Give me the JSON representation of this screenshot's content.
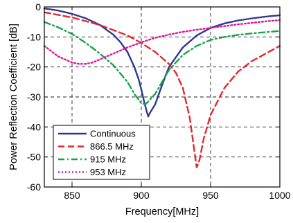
{
  "chart_data": {
    "type": "line",
    "xlabel": "Frequency[MHz]",
    "ylabel": "Power Reflection Coefficient [dB]",
    "xlim": [
      830,
      1000
    ],
    "ylim": [
      -60,
      0
    ],
    "x_ticks": [
      850,
      900,
      950,
      1000
    ],
    "y_ticks": [
      0,
      -10,
      -20,
      -30,
      -40,
      -50,
      -60
    ],
    "x_tick_labels": [
      "850",
      "900",
      "950",
      "1000"
    ],
    "y_tick_labels": [
      "0",
      "-10",
      "-20",
      "-30",
      "-40",
      "-50",
      "-60"
    ],
    "grid": true,
    "legend_position": "lower-left",
    "series": [
      {
        "name": "Continuous",
        "color": "#2b3990",
        "dash": "solid",
        "x": [
          830,
          840,
          850,
          860,
          870,
          880,
          885,
          890,
          895,
          898,
          900,
          902,
          904,
          905,
          906,
          908,
          910,
          915,
          920,
          930,
          940,
          950,
          960,
          970,
          980,
          990,
          1000
        ],
        "y": [
          -0.5,
          -1.2,
          -2.3,
          -3.8,
          -6.0,
          -9.3,
          -11.8,
          -15.0,
          -20.0,
          -24.0,
          -27.5,
          -31.5,
          -35.0,
          -36.5,
          -35.5,
          -34.0,
          -32.5,
          -26.0,
          -20.0,
          -13.5,
          -9.5,
          -7.0,
          -5.5,
          -4.5,
          -3.8,
          -3.2,
          -2.8
        ]
      },
      {
        "name": "866.5 MHz",
        "color": "#e8262d",
        "dash": "dashed",
        "x": [
          830,
          850,
          870,
          890,
          900,
          910,
          920,
          925,
          930,
          935,
          938,
          940,
          942,
          945,
          950,
          960,
          970,
          980,
          990,
          1000
        ],
        "y": [
          -1.8,
          -3.5,
          -6.0,
          -9.5,
          -12.0,
          -15.0,
          -19.0,
          -22.0,
          -27.0,
          -37.0,
          -47.0,
          -53.5,
          -51.0,
          -44.0,
          -36.0,
          -27.0,
          -21.5,
          -18.0,
          -15.5,
          -13.0
        ]
      },
      {
        "name": "915 MHz",
        "color": "#19a34a",
        "dash": "dashdot",
        "x": [
          830,
          840,
          850,
          860,
          870,
          880,
          890,
          895,
          900,
          903,
          905,
          910,
          915,
          920,
          930,
          940,
          950,
          960,
          970,
          980,
          990,
          1000
        ],
        "y": [
          -5.0,
          -6.8,
          -9.0,
          -12.0,
          -15.5,
          -19.5,
          -25.0,
          -29.0,
          -32.0,
          -32.5,
          -31.5,
          -29.0,
          -25.0,
          -21.0,
          -16.0,
          -13.0,
          -11.0,
          -10.0,
          -9.3,
          -8.8,
          -8.4,
          -8.0
        ]
      },
      {
        "name": "953 MHz",
        "color": "#e2179b",
        "dash": "dotted",
        "x": [
          830,
          840,
          850,
          855,
          860,
          865,
          870,
          880,
          890,
          900,
          910,
          920,
          930,
          940,
          950,
          960,
          970,
          980,
          990,
          1000
        ],
        "y": [
          -13.0,
          -16.5,
          -18.5,
          -19.0,
          -19.0,
          -18.5,
          -17.5,
          -15.5,
          -13.5,
          -11.8,
          -10.3,
          -9.2,
          -8.3,
          -7.6,
          -7.0,
          -6.4,
          -5.8,
          -5.3,
          -4.8,
          -4.4
        ]
      }
    ]
  }
}
